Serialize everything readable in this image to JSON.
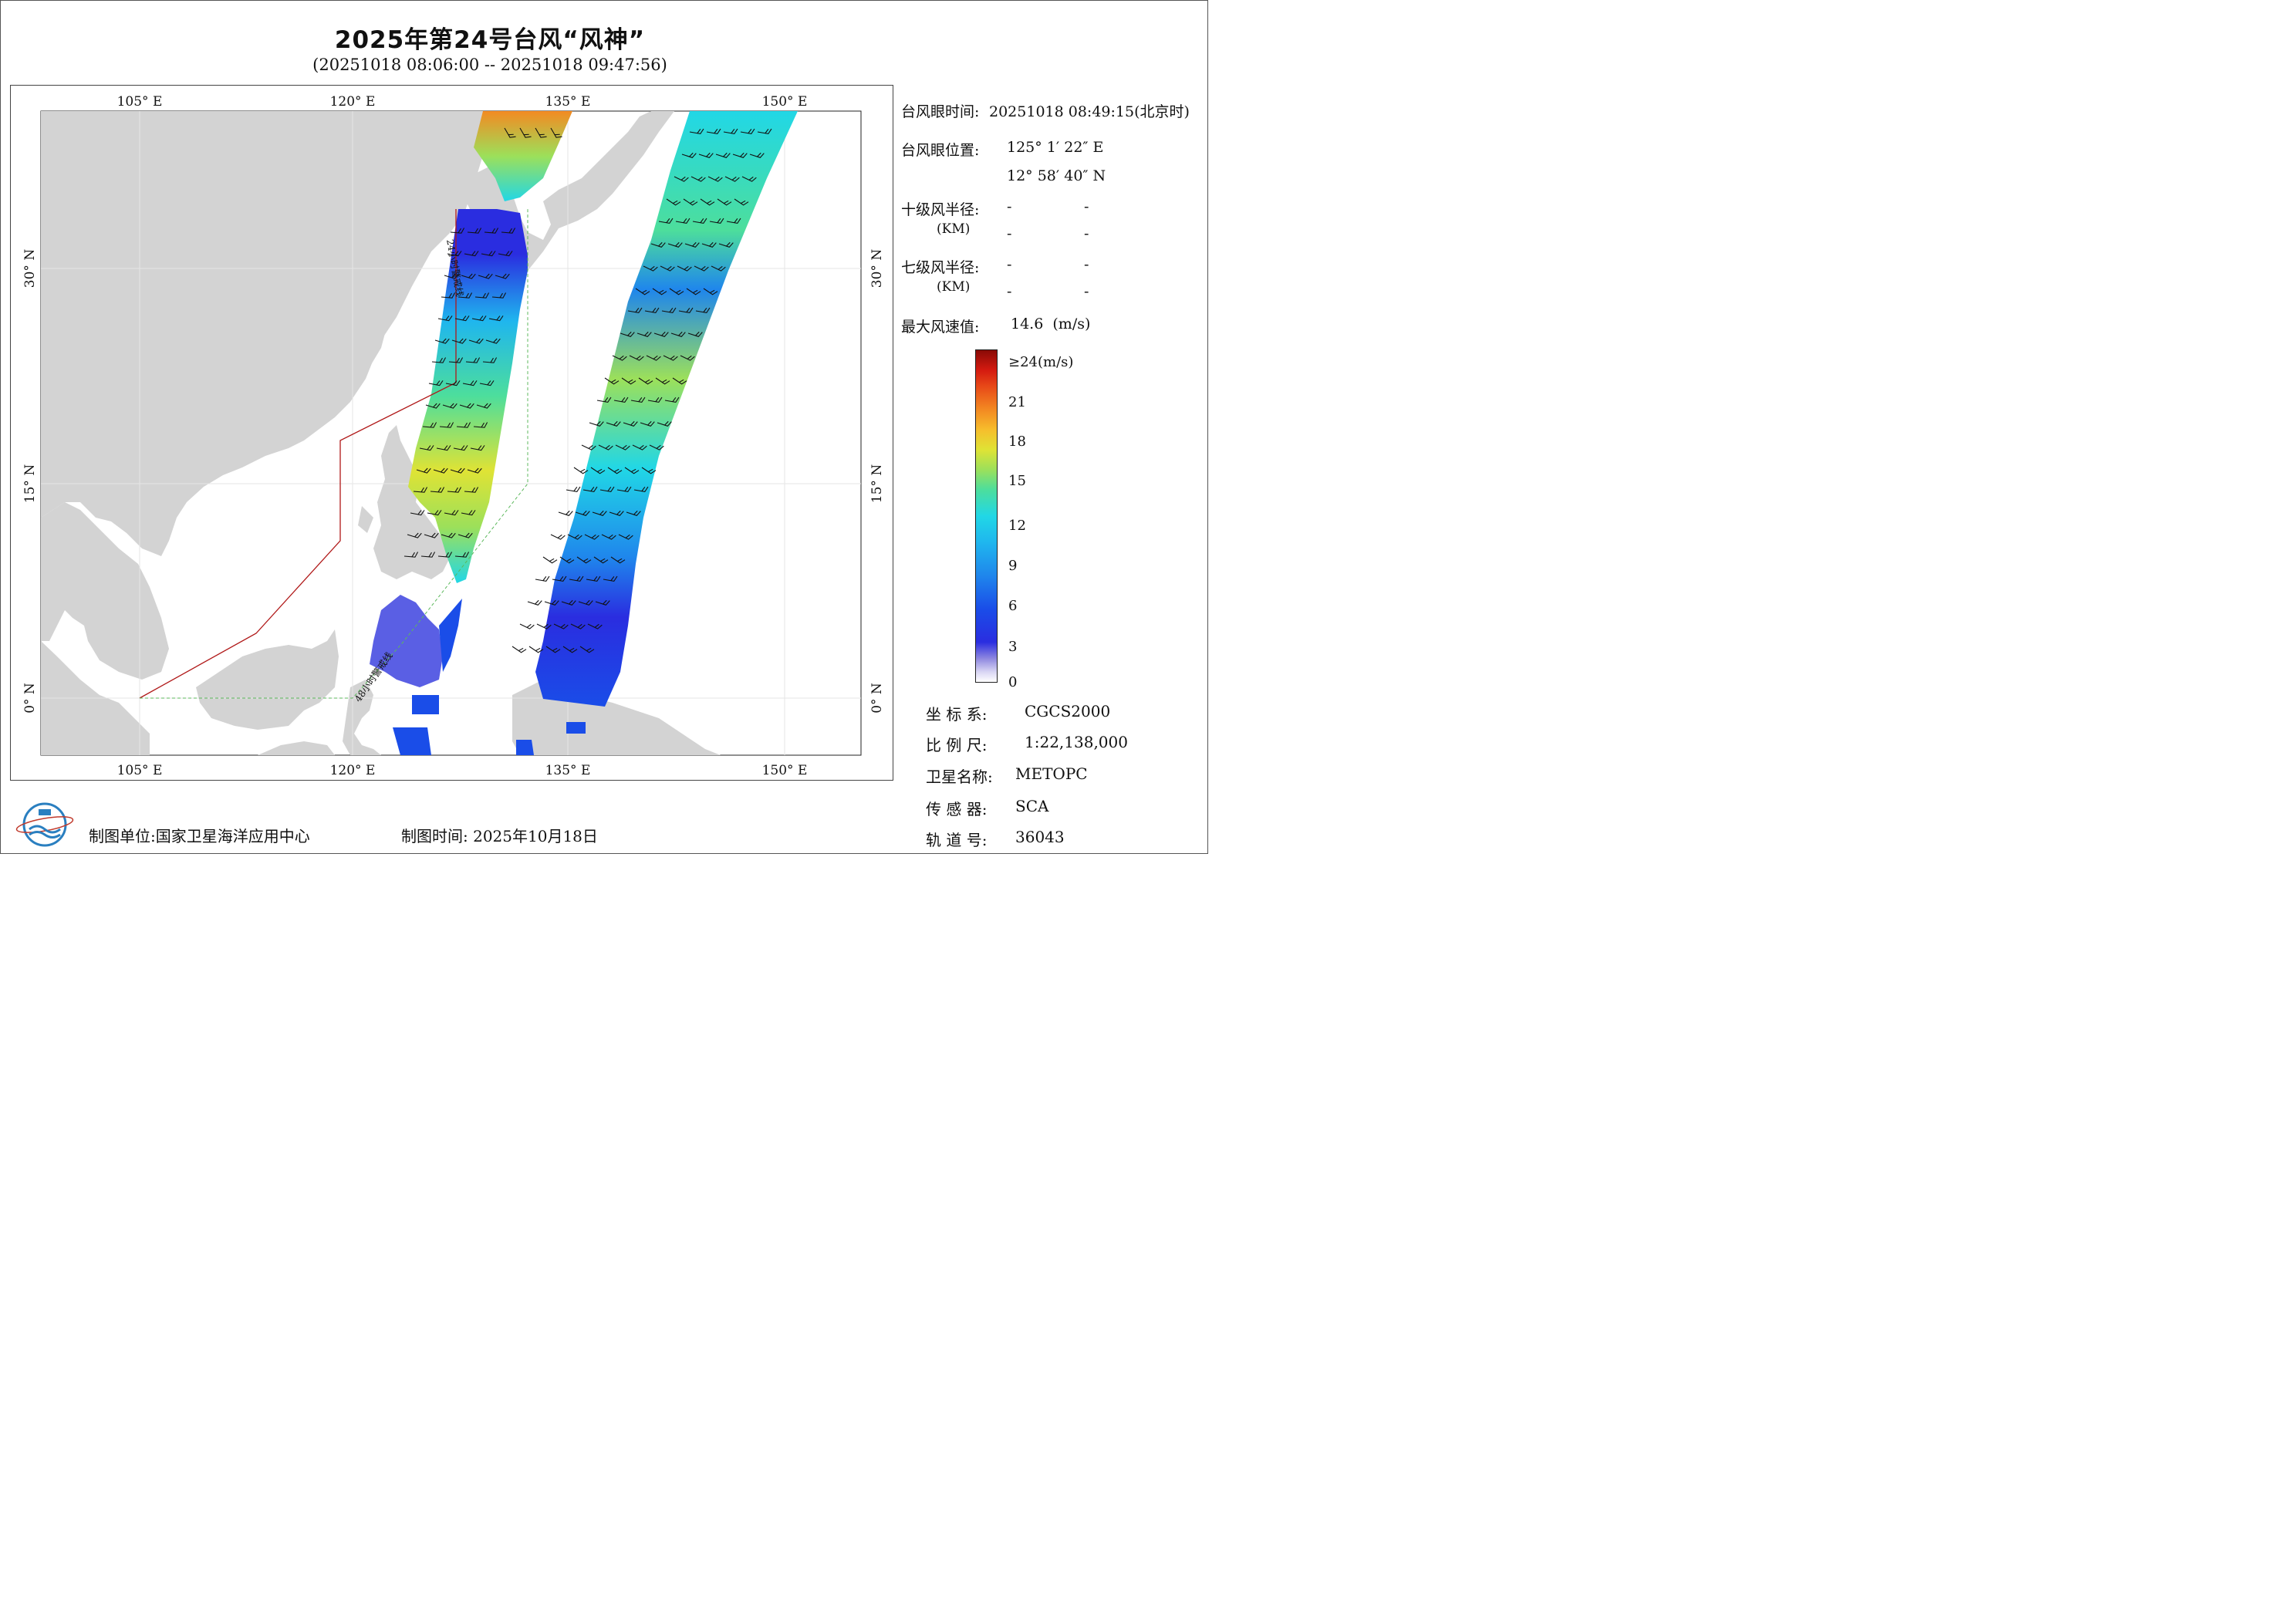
{
  "title": "2025年第24号台风“风神”",
  "subtitle": "(20251018 08:06:00 -- 20251018 09:47:56)",
  "map": {
    "lon_ticks": [
      "105° E",
      "120° E",
      "135° E",
      "150° E"
    ],
    "lat_ticks": [
      "30° N",
      "15° N",
      "0° N"
    ],
    "track_label_24h": "24小时警戒线",
    "track_label_48h": "48小时警戒线"
  },
  "info": {
    "eye_time_label": "台风眼时间:",
    "eye_time_value": "20251018 08:49:15(北京时)",
    "eye_pos_label": "台风眼位置:",
    "eye_lon": "125° 1′ 22″ E",
    "eye_lat": "12° 58′ 40″ N",
    "r10_label": "十级风半径:",
    "r7_label": "七级风半径:",
    "km_label": "(KM)",
    "dash": "-",
    "max_wind_label": "最大风速值:",
    "max_wind_value": "14.6  (m/s)"
  },
  "colorbar": {
    "labels": [
      "≥24(m/s)",
      "21",
      "18",
      "15",
      "12",
      "9",
      "6",
      "3",
      "0"
    ],
    "colors": [
      "#8a0a06",
      "#d41a10",
      "#f38a22",
      "#dfe335",
      "#4dde9c",
      "#21d7e6",
      "#1f86ec",
      "#2a2de0",
      "#ffffff"
    ]
  },
  "meta": {
    "crs_label": "坐 标 系:",
    "crs_value": "CGCS2000",
    "scale_label": "比 例 尺:",
    "scale_value": "1:22,138,000",
    "sat_label": "卫星名称:",
    "sat_value": "METOPC",
    "sensor_label": "传 感 器:",
    "sensor_value": "SCA",
    "orbit_label": "轨 道 号:",
    "orbit_value": "36043"
  },
  "footer": {
    "producer": "制图单位:国家卫星海洋应用中心",
    "date": "制图时间:   2025年10月18日"
  }
}
